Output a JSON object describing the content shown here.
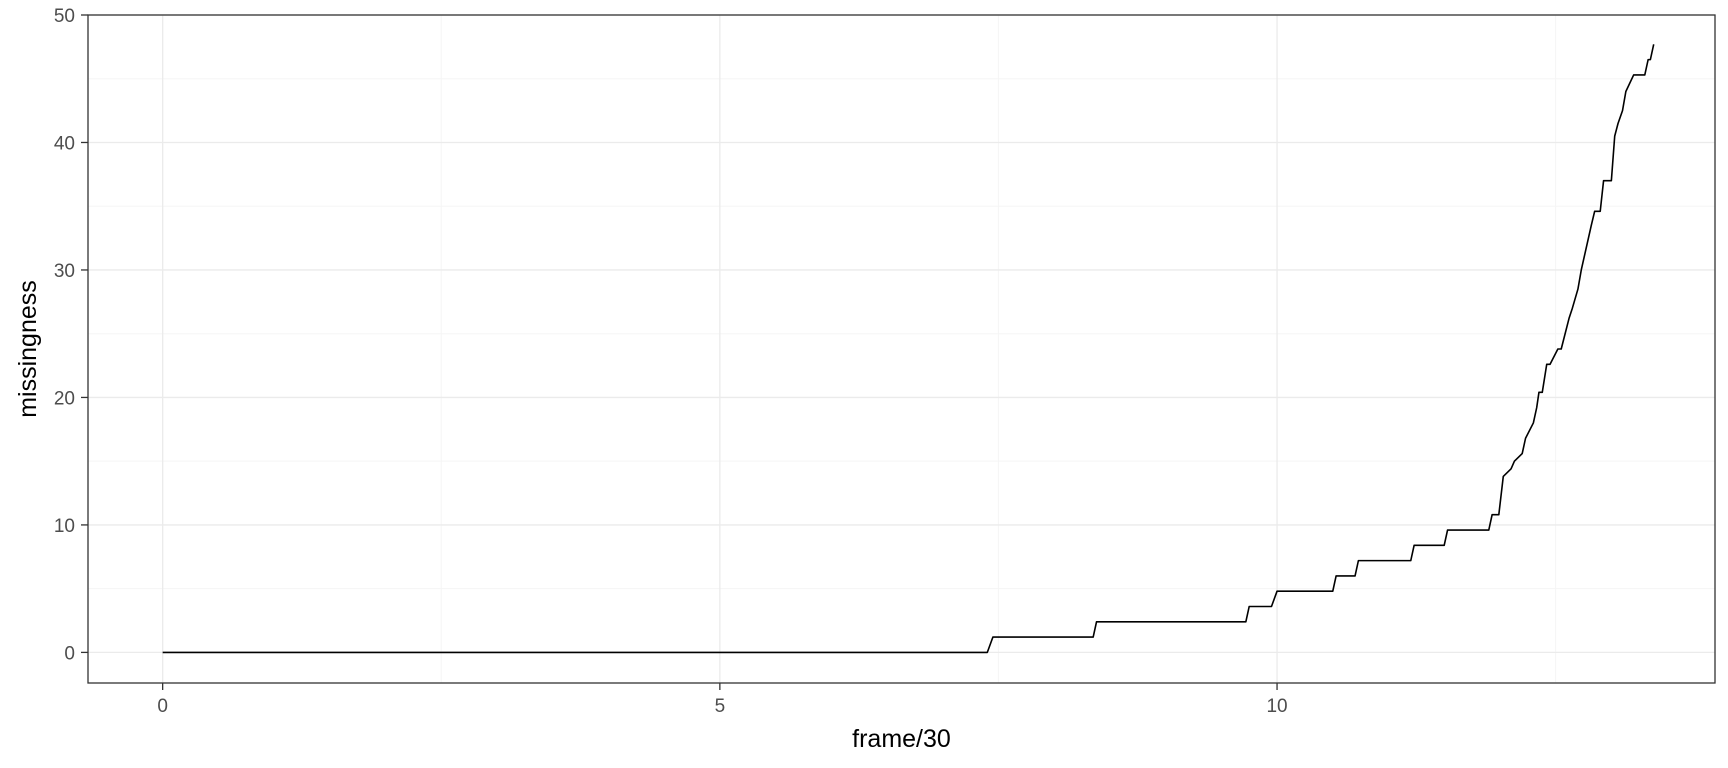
{
  "chart_data": {
    "type": "line",
    "title": "",
    "xlabel": "frame/30",
    "ylabel": "missingness",
    "xlim": [
      -0.67,
      13.93
    ],
    "ylim": [
      -2.4,
      50
    ],
    "x_ticks": [
      0,
      5,
      10
    ],
    "y_ticks": [
      0,
      10,
      20,
      30,
      40,
      50
    ],
    "x_tick_labels": [
      "0",
      "5",
      "10"
    ],
    "y_tick_labels": [
      "0",
      "10",
      "20",
      "30",
      "40",
      "50"
    ],
    "grid": true,
    "legend": "none",
    "colors": {
      "line": "#000000",
      "grid_major": "#ebebeb",
      "grid_minor": "#f5f5f5",
      "panel_border": "#333333",
      "tick_text": "#4d4d4d"
    },
    "series": [
      {
        "x": [
          0,
          7.4,
          7.45,
          8.35,
          8.38,
          9.72,
          9.75,
          9.95,
          10.0,
          10.5,
          10.53,
          10.7,
          10.73,
          11.2,
          11.23,
          11.5,
          11.53,
          11.9,
          11.93,
          11.99,
          12.03,
          12.1,
          12.13,
          12.2,
          12.23,
          12.3,
          12.33,
          12.35,
          12.38,
          12.42,
          12.45,
          12.52,
          12.55,
          12.62,
          12.65,
          12.7,
          12.73,
          12.82,
          12.85,
          12.9,
          12.93,
          13.0,
          13.03,
          13.06,
          13.1,
          13.13,
          13.2,
          13.3,
          13.33,
          13.35,
          13.38
        ],
        "y": [
          0,
          0,
          1.2,
          1.2,
          2.4,
          2.4,
          3.6,
          3.6,
          4.8,
          4.8,
          6.0,
          6.0,
          7.2,
          7.2,
          8.4,
          8.4,
          9.6,
          9.6,
          10.8,
          10.8,
          13.8,
          14.4,
          15.0,
          15.6,
          16.8,
          18.0,
          19.2,
          20.4,
          20.4,
          22.6,
          22.6,
          23.8,
          23.8,
          26.2,
          27.0,
          28.5,
          30.0,
          33.5,
          34.6,
          34.6,
          37.0,
          37.0,
          40.5,
          41.5,
          42.5,
          44.0,
          45.3,
          45.3,
          46.5,
          46.5,
          47.7
        ]
      }
    ]
  }
}
